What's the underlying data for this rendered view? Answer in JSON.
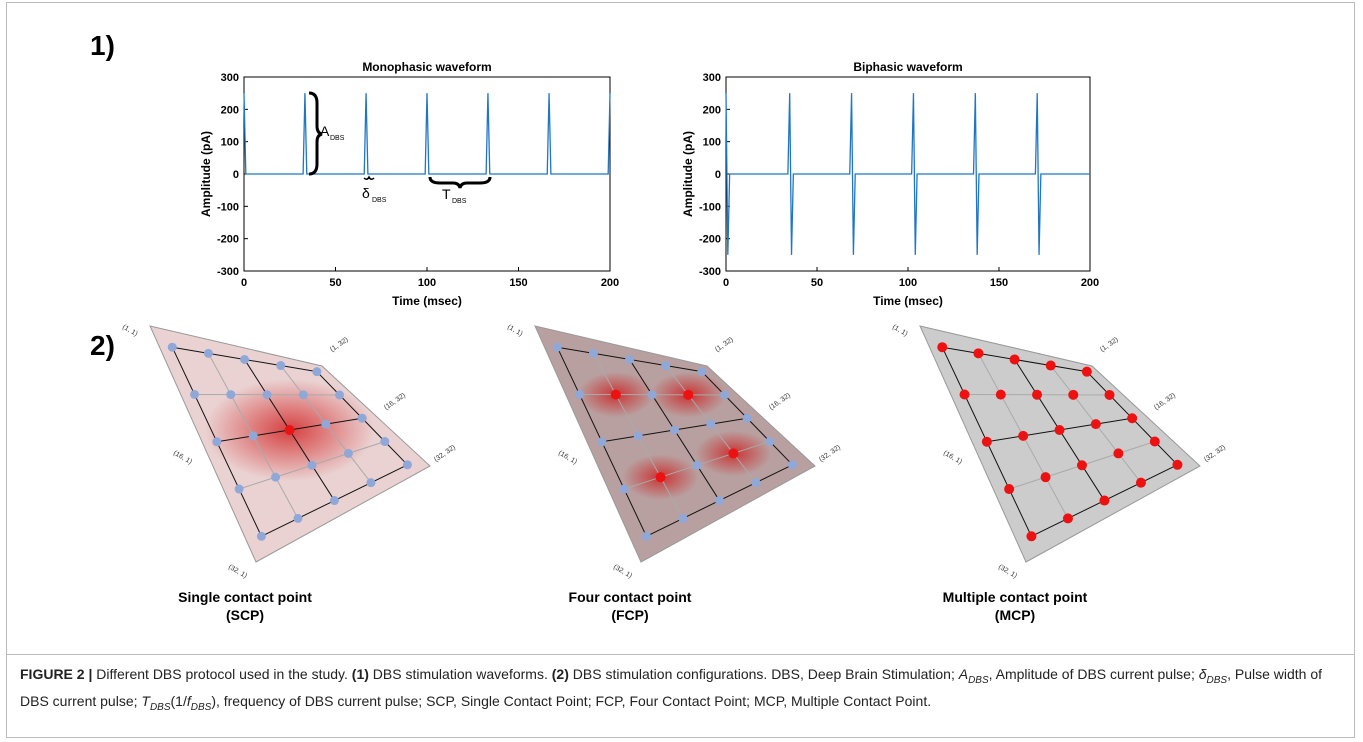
{
  "panel_labels": [
    "1)",
    "2)"
  ],
  "chart_data": [
    {
      "type": "line",
      "title": "Monophasic waveform",
      "xlabel": "Time (msec)",
      "ylabel": "Amplitude (pA)",
      "xlim": [
        0,
        200
      ],
      "ylim": [
        -300,
        300
      ],
      "xticks": [
        0,
        50,
        100,
        150,
        200
      ],
      "yticks": [
        -300,
        -200,
        -100,
        0,
        100,
        200,
        300
      ],
      "series": [
        {
          "color": "#1f77c4",
          "x": [
            0,
            1,
            32.3,
            33.3,
            34.3,
            65.7,
            66.7,
            67.7,
            99,
            100,
            101,
            132.3,
            133.3,
            134.3,
            165.7,
            166.7,
            167.7,
            199,
            200
          ],
          "values": [
            250,
            0,
            0,
            250,
            0,
            0,
            250,
            0,
            0,
            250,
            0,
            0,
            250,
            0,
            0,
            250,
            0,
            0,
            250
          ]
        }
      ],
      "annotations": [
        {
          "text": "A",
          "sub": "DBS"
        },
        {
          "text": "δ",
          "sub": "DBS"
        },
        {
          "text": "T",
          "sub": "DBS"
        }
      ]
    },
    {
      "type": "line",
      "title": "Biphasic waveform",
      "xlabel": "Time (msec)",
      "ylabel": "Amplitude (pA)",
      "xlim": [
        0,
        200
      ],
      "ylim": [
        -300,
        300
      ],
      "xticks": [
        0,
        50,
        100,
        150,
        200
      ],
      "yticks": [
        -300,
        -200,
        -100,
        0,
        100,
        200,
        300
      ],
      "series": [
        {
          "color": "#1f77c4",
          "x": [
            0,
            1,
            2,
            34,
            35,
            36,
            37,
            68,
            69,
            70,
            71,
            102,
            103,
            104,
            105,
            136,
            137,
            138,
            139,
            170,
            171,
            172,
            173,
            200
          ],
          "values": [
            250,
            -250,
            0,
            0,
            250,
            -250,
            0,
            0,
            250,
            -250,
            0,
            0,
            250,
            -250,
            0,
            0,
            250,
            -250,
            0,
            0,
            250,
            -250,
            0,
            0
          ]
        }
      ]
    }
  ],
  "diagrams": [
    {
      "corner_labels": [
        "(1, 1)",
        "(1, 32)",
        "(16, 1)",
        "(16, 32)",
        "(32, 1)",
        "(32, 32)"
      ],
      "name": "Single contact point",
      "abbr": "(SCP)"
    },
    {
      "corner_labels": [
        "(1, 1)",
        "(1, 32)",
        "(16, 1)",
        "(16, 32)",
        "(32, 1)",
        "(32, 32)"
      ],
      "name": "Four contact point",
      "abbr": "(FCP)"
    },
    {
      "corner_labels": [
        "(1, 1)",
        "(1, 32)",
        "(16, 1)",
        "(16, 32)",
        "(32, 1)",
        "(32, 32)"
      ],
      "name": "Multiple contact point",
      "abbr": "(MCP)"
    }
  ],
  "caption": {
    "runs": [
      {
        "text": "FIGURE 2 | ",
        "style": "bold"
      },
      {
        "text": "Different DBS protocol used in the study. ",
        "style": "normal"
      },
      {
        "text": "(1)",
        "style": "bold"
      },
      {
        "text": " DBS stimulation waveforms. ",
        "style": "normal"
      },
      {
        "text": "(2)",
        "style": "bold"
      },
      {
        "text": " DBS stimulation configurations. DBS, Deep Brain Stimulation; ",
        "style": "normal"
      },
      {
        "text": "A",
        "style": "italic"
      },
      {
        "text": "DBS",
        "style": "sub"
      },
      {
        "text": ", Amplitude of DBS current pulse; ",
        "style": "normal"
      },
      {
        "text": "δ",
        "style": "italic"
      },
      {
        "text": "DBS",
        "style": "sub"
      },
      {
        "text": ", Pulse width of DBS current pulse; ",
        "style": "normal"
      },
      {
        "text": "T",
        "style": "italic"
      },
      {
        "text": "DBS",
        "style": "sub"
      },
      {
        "text": "(1/",
        "style": "normal"
      },
      {
        "text": "f",
        "style": "italic"
      },
      {
        "text": "DBS",
        "style": "sub"
      },
      {
        "text": "), frequency of DBS current pulse; SCP, Single Contact Point; FCP, Four Contact Point; MCP, Multiple Contact Point.",
        "style": "normal"
      }
    ]
  }
}
